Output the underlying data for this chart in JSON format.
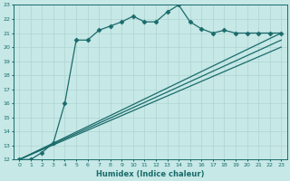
{
  "xlabel": "Humidex (Indice chaleur)",
  "xlim": [
    -0.5,
    23.5
  ],
  "ylim": [
    12,
    23
  ],
  "xticks": [
    0,
    1,
    2,
    3,
    4,
    5,
    6,
    7,
    8,
    9,
    10,
    11,
    12,
    13,
    14,
    15,
    16,
    17,
    18,
    19,
    20,
    21,
    22,
    23
  ],
  "yticks": [
    12,
    13,
    14,
    15,
    16,
    17,
    18,
    19,
    20,
    21,
    22,
    23
  ],
  "bg_color": "#c6e8e6",
  "line_color": "#1a6b6b",
  "grid_color": "#aed4d2",
  "series": [
    {
      "x": [
        0,
        1,
        2,
        3,
        4,
        5,
        6,
        7,
        8,
        9,
        10,
        11,
        12,
        13,
        14,
        15,
        16,
        17,
        18,
        19,
        20,
        21,
        22,
        23
      ],
      "y": [
        12,
        12,
        12.5,
        13.2,
        16.0,
        20.5,
        20.5,
        21.2,
        21.5,
        21.8,
        22.2,
        21.8,
        21.8,
        22.5,
        23.0,
        21.8,
        21.3,
        21.0,
        21.2,
        21.0,
        21.0,
        21.0,
        21.0,
        21.0
      ],
      "marker": "D",
      "markersize": 2.5,
      "linewidth": 0.9
    },
    {
      "x": [
        0,
        23
      ],
      "y": [
        12,
        21.0
      ],
      "marker": null,
      "linewidth": 0.9
    },
    {
      "x": [
        0,
        23
      ],
      "y": [
        12,
        20.5
      ],
      "marker": null,
      "linewidth": 0.9
    },
    {
      "x": [
        0,
        23
      ],
      "y": [
        12,
        20.0
      ],
      "marker": null,
      "linewidth": 0.9
    }
  ]
}
